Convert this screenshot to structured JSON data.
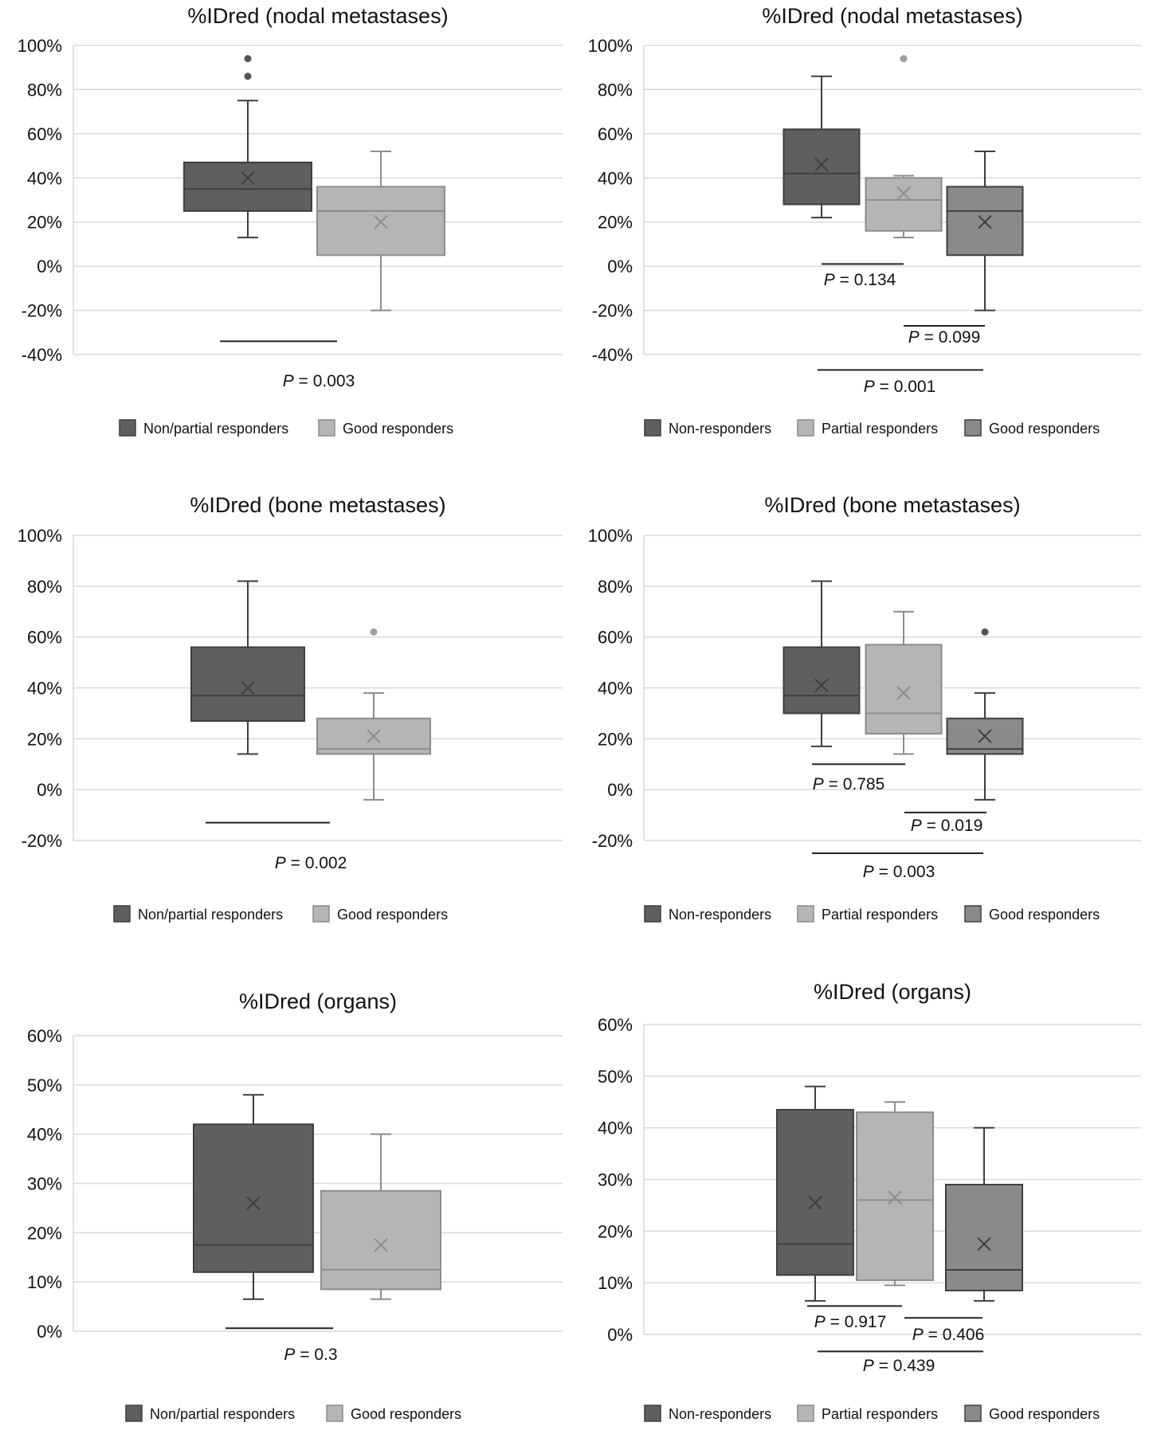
{
  "chart_data": [
    {
      "type": "box",
      "title": "%IDred (nodal metastases)",
      "yunit": "%",
      "ylim": [
        -40,
        100
      ],
      "yticks": [
        100,
        80,
        60,
        40,
        20,
        0,
        -20,
        -40
      ],
      "tick_labels": [
        "100%",
        "80%",
        "60%",
        "40%",
        "20%",
        "0%",
        "-20%",
        "-40%"
      ],
      "legend_position": "bottom",
      "grid": true,
      "series": [
        {
          "name": "Non/partial responders",
          "color": "#5f5f5f",
          "min": 13,
          "q1": 25,
          "median": 35,
          "q3": 47,
          "max": 75,
          "mean": 40,
          "outliers": [
            86,
            94
          ]
        },
        {
          "name": "Good responders",
          "color": "#b5b5b5",
          "min": -20,
          "q1": 5,
          "median": 25,
          "q3": 36,
          "max": 52,
          "mean": 20,
          "outliers": []
        }
      ],
      "comparisons": [
        {
          "between": [
            0,
            1
          ],
          "line_y": -34,
          "label": "= 0.003"
        }
      ]
    },
    {
      "type": "box",
      "title": "%IDred (nodal metastases)",
      "yunit": "%",
      "ylim": [
        -40,
        100
      ],
      "yticks": [
        100,
        80,
        60,
        40,
        20,
        0,
        -20,
        -40
      ],
      "tick_labels": [
        "100%",
        "80%",
        "60%",
        "40%",
        "20%",
        "0%",
        "-20%",
        "-40%"
      ],
      "legend_position": "bottom",
      "grid": true,
      "series": [
        {
          "name": "Non-responders",
          "color": "#5f5f5f",
          "min": 22,
          "q1": 28,
          "median": 42,
          "q3": 62,
          "max": 86,
          "mean": 46,
          "outliers": []
        },
        {
          "name": "Partial responders",
          "color": "#b5b5b5",
          "min": 13,
          "q1": 16,
          "median": 30,
          "q3": 40,
          "max": 41,
          "mean": 33,
          "outliers": [
            94
          ]
        },
        {
          "name": "Good responders",
          "color": "#8a8a8a",
          "min": -20,
          "q1": 5,
          "median": 25,
          "q3": 36,
          "max": 52,
          "mean": 20,
          "outliers": []
        }
      ],
      "comparisons": [
        {
          "between": [
            0,
            1
          ],
          "line_y": 1,
          "label": "= 0.134"
        },
        {
          "between": [
            1,
            2
          ],
          "line_y": -27,
          "label": "= 0.099"
        },
        {
          "between": [
            0,
            2
          ],
          "line_y": -47,
          "label": "= 0.001"
        }
      ]
    },
    {
      "type": "box",
      "title": "%IDred (bone metastases)",
      "yunit": "%",
      "ylim": [
        -20,
        100
      ],
      "yticks": [
        100,
        80,
        60,
        40,
        20,
        0,
        -20
      ],
      "tick_labels": [
        "100%",
        "80%",
        "60%",
        "40%",
        "20%",
        "0%",
        "-20%"
      ],
      "legend_position": "bottom",
      "grid": true,
      "series": [
        {
          "name": "Non/partial responders",
          "color": "#5f5f5f",
          "min": 14,
          "q1": 27,
          "median": 37,
          "q3": 56,
          "max": 82,
          "mean": 40,
          "outliers": []
        },
        {
          "name": "Good responders",
          "color": "#b5b5b5",
          "min": -4,
          "q1": 14,
          "median": 16,
          "q3": 28,
          "max": 38,
          "mean": 21,
          "outliers": [
            62
          ]
        }
      ],
      "comparisons": [
        {
          "between": [
            0,
            1
          ],
          "line_y": -13,
          "label": "= 0.002"
        }
      ]
    },
    {
      "type": "box",
      "title": "%IDred (bone metastases)",
      "yunit": "%",
      "ylim": [
        -20,
        100
      ],
      "yticks": [
        100,
        80,
        60,
        40,
        20,
        0,
        -20
      ],
      "tick_labels": [
        "100%",
        "80%",
        "60%",
        "40%",
        "20%",
        "0%",
        "-20%"
      ],
      "legend_position": "bottom",
      "grid": true,
      "series": [
        {
          "name": "Non-responders",
          "color": "#5f5f5f",
          "min": 17,
          "q1": 30,
          "median": 37,
          "q3": 56,
          "max": 82,
          "mean": 41,
          "outliers": []
        },
        {
          "name": "Partial responders",
          "color": "#b5b5b5",
          "min": 14,
          "q1": 22,
          "median": 30,
          "q3": 57,
          "max": 70,
          "mean": 38,
          "outliers": []
        },
        {
          "name": "Good responders",
          "color": "#8a8a8a",
          "min": -4,
          "q1": 14,
          "median": 16,
          "q3": 28,
          "max": 38,
          "mean": 21,
          "outliers": [
            62
          ]
        }
      ],
      "comparisons": [
        {
          "between": [
            0,
            1
          ],
          "line_y": 10,
          "label": "= 0.785"
        },
        {
          "between": [
            1,
            2
          ],
          "line_y": -9,
          "label": "= 0.019"
        },
        {
          "between": [
            0,
            2
          ],
          "line_y": -25,
          "label": "= 0.003"
        }
      ]
    },
    {
      "type": "box",
      "title": "%IDred (organs)",
      "yunit": "%",
      "ylim": [
        0,
        60
      ],
      "yticks": [
        60,
        50,
        40,
        30,
        20,
        10,
        0
      ],
      "tick_labels": [
        "60%",
        "50%",
        "40%",
        "30%",
        "20%",
        "10%",
        "0%"
      ],
      "legend_position": "bottom",
      "grid": true,
      "series": [
        {
          "name": "Non/partial responders",
          "color": "#5f5f5f",
          "min": 6.5,
          "q1": 12,
          "median": 17.5,
          "q3": 42,
          "max": 48,
          "mean": 26,
          "outliers": []
        },
        {
          "name": "Good responders",
          "color": "#b5b5b5",
          "min": 6.5,
          "q1": 8.5,
          "median": 12.5,
          "q3": 28.5,
          "max": 40,
          "mean": 17.5,
          "outliers": []
        }
      ],
      "comparisons": [
        {
          "between": [
            0,
            1
          ],
          "line_y": 0.6,
          "label": "= 0.3"
        }
      ]
    },
    {
      "type": "box",
      "title": "%IDred (organs)",
      "yunit": "%",
      "ylim": [
        0,
        60
      ],
      "yticks": [
        60,
        50,
        40,
        30,
        20,
        10,
        0
      ],
      "tick_labels": [
        "60%",
        "50%",
        "40%",
        "30%",
        "20%",
        "10%",
        "0%"
      ],
      "legend_position": "bottom",
      "grid": true,
      "series": [
        {
          "name": "Non-responders",
          "color": "#5f5f5f",
          "min": 6.5,
          "q1": 11.5,
          "median": 17.5,
          "q3": 43.5,
          "max": 48,
          "mean": 25.5,
          "outliers": []
        },
        {
          "name": "Partial responders",
          "color": "#b5b5b5",
          "min": 9.5,
          "q1": 10.5,
          "median": 26,
          "q3": 43,
          "max": 45,
          "mean": 26.5,
          "outliers": []
        },
        {
          "name": "Good responders",
          "color": "#8a8a8a",
          "min": 6.5,
          "q1": 8.5,
          "median": 12.5,
          "q3": 29,
          "max": 40,
          "mean": 17.5,
          "outliers": []
        }
      ],
      "comparisons": [
        {
          "between": [
            0,
            1
          ],
          "line_y": 5.5,
          "label": "= 0.917"
        },
        {
          "between": [
            1,
            2
          ],
          "line_y": 3.2,
          "label": "= 0.406"
        },
        {
          "between": [
            0,
            2
          ],
          "line_y": -3.3,
          "label": "= 0.439"
        }
      ]
    }
  ],
  "p_symbol": "P",
  "mean_marker": "×"
}
